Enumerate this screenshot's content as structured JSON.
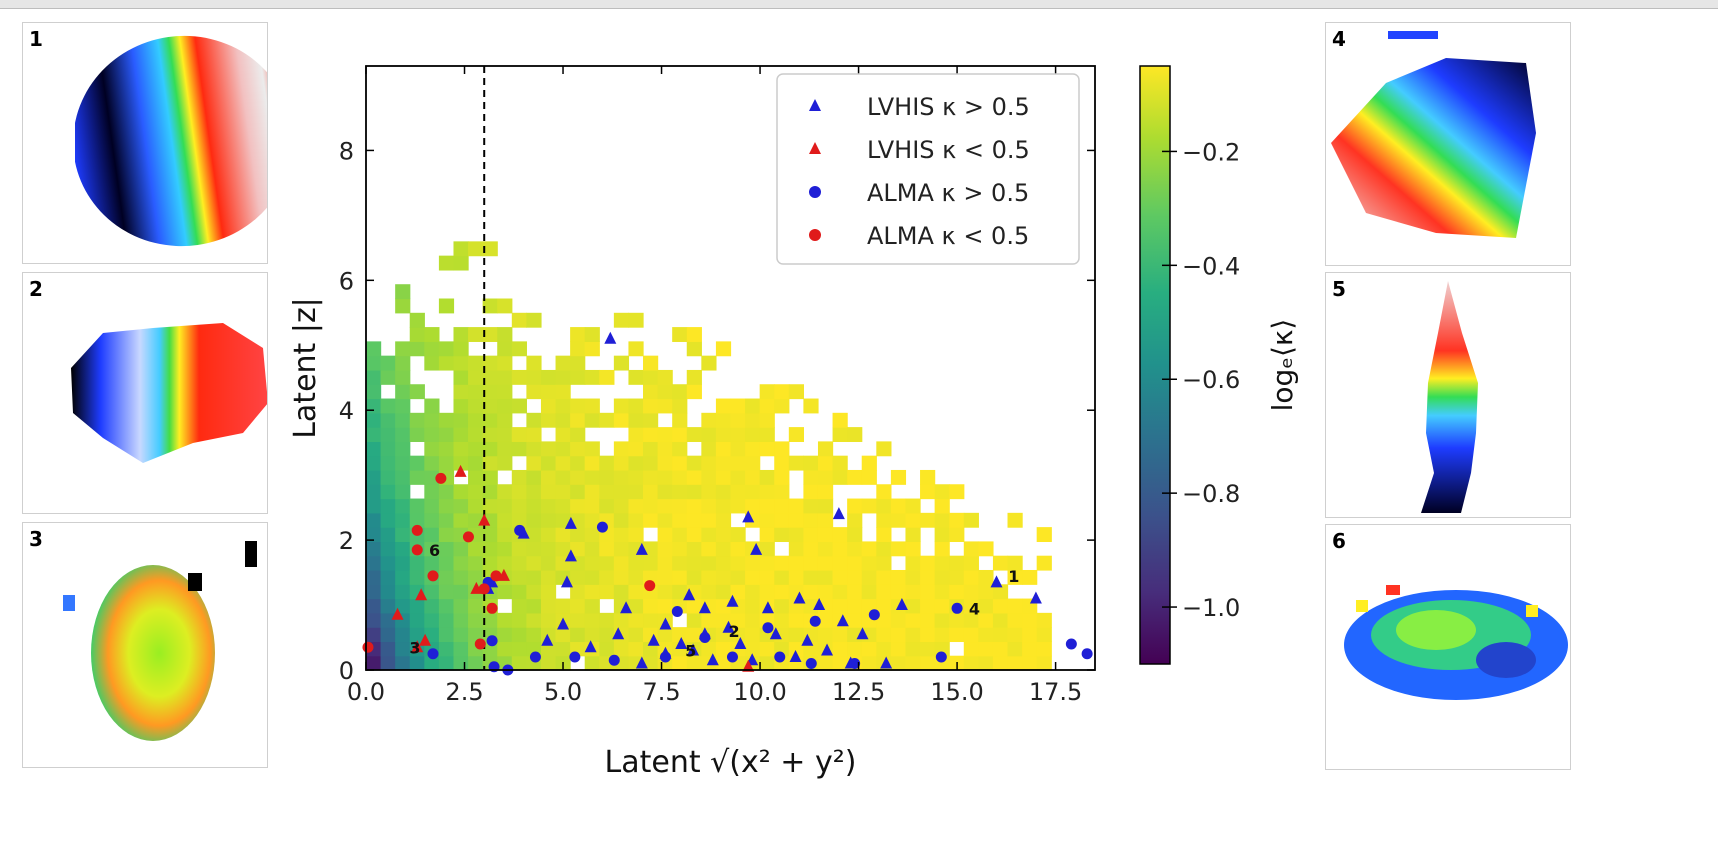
{
  "panels": [
    {
      "label": "1"
    },
    {
      "label": "2"
    },
    {
      "label": "3"
    },
    {
      "label": "4"
    },
    {
      "label": "5"
    },
    {
      "label": "6"
    }
  ],
  "chart_data": {
    "type": "heatmap",
    "xlabel": "Latent √(x² + y²)",
    "ylabel": "Latent |z|",
    "xlim": [
      0,
      18.5
    ],
    "ylim": [
      0,
      9.3
    ],
    "xticks": [
      "0.0",
      "2.5",
      "5.0",
      "7.5",
      "10.0",
      "12.5",
      "15.0",
      "17.5"
    ],
    "yticks": [
      "0",
      "2",
      "4",
      "6",
      "8"
    ],
    "colorbar": {
      "label": "logₑ⟨κ⟩",
      "range": [
        -1.1,
        -0.05
      ],
      "ticks": [
        "−1.0",
        "−0.8",
        "−0.6",
        "−0.4",
        "−0.2"
      ],
      "colormap": "viridis"
    },
    "vline_x": 3.0,
    "bin_width": 0.37,
    "bin_height": 0.22,
    "legend": {
      "position": "upper right",
      "entries": [
        {
          "label": "LVHIS κ > 0.5",
          "marker": "triangle",
          "color": "#1f1fd6"
        },
        {
          "label": "LVHIS κ < 0.5",
          "marker": "triangle",
          "color": "#e01b1b"
        },
        {
          "label": "ALMA κ > 0.5",
          "marker": "circle",
          "color": "#1f1fd6"
        },
        {
          "label": "ALMA κ < 0.5",
          "marker": "circle",
          "color": "#e01b1b"
        }
      ]
    },
    "series": [
      {
        "name": "LVHIS κ > 0.5",
        "marker": "triangle",
        "color": "#1f1fd6",
        "points": [
          [
            6.2,
            5.1
          ],
          [
            4.0,
            2.1
          ],
          [
            5.2,
            2.25
          ],
          [
            5.2,
            1.75
          ],
          [
            7.0,
            1.85
          ],
          [
            9.7,
            2.35
          ],
          [
            9.9,
            1.85
          ],
          [
            12.0,
            2.4
          ],
          [
            3.2,
            1.35
          ],
          [
            3.1,
            1.25
          ],
          [
            5.1,
            1.35
          ],
          [
            6.6,
            0.95
          ],
          [
            8.2,
            1.15
          ],
          [
            8.6,
            0.95
          ],
          [
            9.3,
            1.05
          ],
          [
            10.2,
            0.95
          ],
          [
            11.0,
            1.1
          ],
          [
            11.5,
            1.0
          ],
          [
            12.1,
            0.75
          ],
          [
            12.6,
            0.55
          ],
          [
            13.6,
            1.0
          ],
          [
            4.6,
            0.45
          ],
          [
            5.0,
            0.7
          ],
          [
            5.7,
            0.35
          ],
          [
            6.4,
            0.55
          ],
          [
            7.3,
            0.45
          ],
          [
            7.6,
            0.7
          ],
          [
            8.0,
            0.4
          ],
          [
            8.3,
            0.3
          ],
          [
            8.6,
            0.55
          ],
          [
            8.8,
            0.15
          ],
          [
            9.2,
            0.65
          ],
          [
            9.5,
            0.4
          ],
          [
            9.8,
            0.15
          ],
          [
            10.4,
            0.55
          ],
          [
            10.9,
            0.2
          ],
          [
            11.2,
            0.45
          ],
          [
            11.7,
            0.3
          ],
          [
            12.3,
            0.1
          ],
          [
            13.2,
            0.1
          ],
          [
            7.0,
            0.1
          ],
          [
            7.6,
            0.25
          ],
          [
            16.0,
            1.35
          ],
          [
            17.0,
            1.1
          ]
        ]
      },
      {
        "name": "LVHIS κ < 0.5",
        "marker": "triangle",
        "color": "#e01b1b",
        "points": [
          [
            2.4,
            3.05
          ],
          [
            3.0,
            2.3
          ],
          [
            2.8,
            1.25
          ],
          [
            3.5,
            1.45
          ],
          [
            1.3,
            0.35
          ],
          [
            1.5,
            0.45
          ],
          [
            0.8,
            0.85
          ],
          [
            1.4,
            1.15
          ],
          [
            9.7,
            0.05
          ]
        ]
      },
      {
        "name": "ALMA κ > 0.5",
        "marker": "circle",
        "color": "#1f1fd6",
        "points": [
          [
            3.9,
            2.15
          ],
          [
            6.0,
            2.2
          ],
          [
            3.1,
            1.35
          ],
          [
            3.2,
            0.45
          ],
          [
            3.25,
            0.05
          ],
          [
            3.6,
            0.0
          ],
          [
            4.3,
            0.2
          ],
          [
            5.3,
            0.2
          ],
          [
            6.3,
            0.15
          ],
          [
            7.6,
            0.2
          ],
          [
            7.9,
            0.9
          ],
          [
            9.3,
            0.2
          ],
          [
            10.2,
            0.65
          ],
          [
            10.5,
            0.2
          ],
          [
            11.3,
            0.1
          ],
          [
            11.4,
            0.75
          ],
          [
            12.4,
            0.1
          ],
          [
            12.9,
            0.85
          ],
          [
            14.6,
            0.2
          ],
          [
            15.0,
            0.95
          ],
          [
            17.9,
            0.4
          ],
          [
            18.3,
            0.25
          ],
          [
            1.7,
            0.25
          ],
          [
            8.6,
            0.5
          ]
        ]
      },
      {
        "name": "ALMA κ < 0.5",
        "marker": "circle",
        "color": "#e01b1b",
        "points": [
          [
            1.9,
            2.95
          ],
          [
            1.3,
            2.15
          ],
          [
            1.3,
            1.85
          ],
          [
            2.6,
            2.05
          ],
          [
            1.7,
            1.45
          ],
          [
            3.0,
            1.25
          ],
          [
            3.2,
            0.95
          ],
          [
            3.3,
            1.45
          ],
          [
            2.9,
            0.4
          ],
          [
            7.2,
            1.3
          ],
          [
            0.05,
            0.35
          ]
        ]
      }
    ],
    "annotations": [
      {
        "text": "1",
        "x": 16.3,
        "y": 1.45
      },
      {
        "text": "2",
        "x": 9.2,
        "y": 0.6
      },
      {
        "text": "3",
        "x": 1.1,
        "y": 0.35
      },
      {
        "text": "4",
        "x": 15.3,
        "y": 0.95
      },
      {
        "text": "5",
        "x": 8.1,
        "y": 0.3
      },
      {
        "text": "6",
        "x": 1.6,
        "y": 1.85
      }
    ]
  }
}
